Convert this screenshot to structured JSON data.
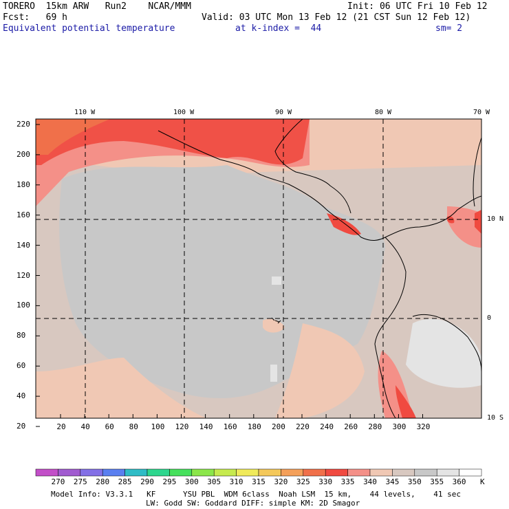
{
  "header": {
    "model": "TORERO  15km ARW   Run2    NCAR/MMM",
    "init": "Init: 06 UTC Fri 10 Feb 12",
    "fcst": "Fcst:   69 h",
    "valid": "Valid: 03 UTC Mon 13 Feb 12 (21 CST Sun 12 Feb 12)",
    "field": "Equivalent potential temperature",
    "level": "at k-index =  44",
    "smooth": "sm= 2"
  },
  "map": {
    "lon_labels": [
      "110 W",
      "100 W",
      "90 W",
      "80 W",
      "70 W"
    ],
    "lat_labels": [
      "10 N",
      "0",
      "10 S"
    ],
    "y_ticks": [
      "220",
      "200",
      "180",
      "160",
      "140",
      "120",
      "100",
      "80",
      "60",
      "40",
      "20"
    ],
    "x_ticks": [
      "20",
      "40",
      "60",
      "80",
      "100",
      "120",
      "140",
      "160",
      "180",
      "200",
      "220",
      "240",
      "260",
      "280",
      "300",
      "320"
    ]
  },
  "colorbar": {
    "unit": "K",
    "labels": [
      "270",
      "275",
      "280",
      "285",
      "290",
      "295",
      "300",
      "305",
      "310",
      "315",
      "320",
      "325",
      "330",
      "335",
      "340",
      "345",
      "350",
      "355",
      "360"
    ],
    "colors": [
      "#c24fc8",
      "#a15bd0",
      "#8370e6",
      "#5a7ff0",
      "#2fbcc6",
      "#2ed68e",
      "#46e05c",
      "#8be64a",
      "#c6ea4e",
      "#f0ea5a",
      "#f4c85a",
      "#f4a05a",
      "#f0704a",
      "#f04a40",
      "#f49088",
      "#f0c8b4",
      "#d8c8c0",
      "#c8c8c8",
      "#e4e4e4",
      "#ffffff"
    ]
  },
  "footer": {
    "line1": "Model Info: V3.3.1   KF      YSU PBL  WDM 6class  Noah LSM  15 km,    44 levels,    41 sec",
    "line2": "LW: Godd SW: Goddard DIFF: simple KM: 2D Smagor"
  },
  "icons": {
    "map": "equivalent-potential-temperature-map"
  }
}
